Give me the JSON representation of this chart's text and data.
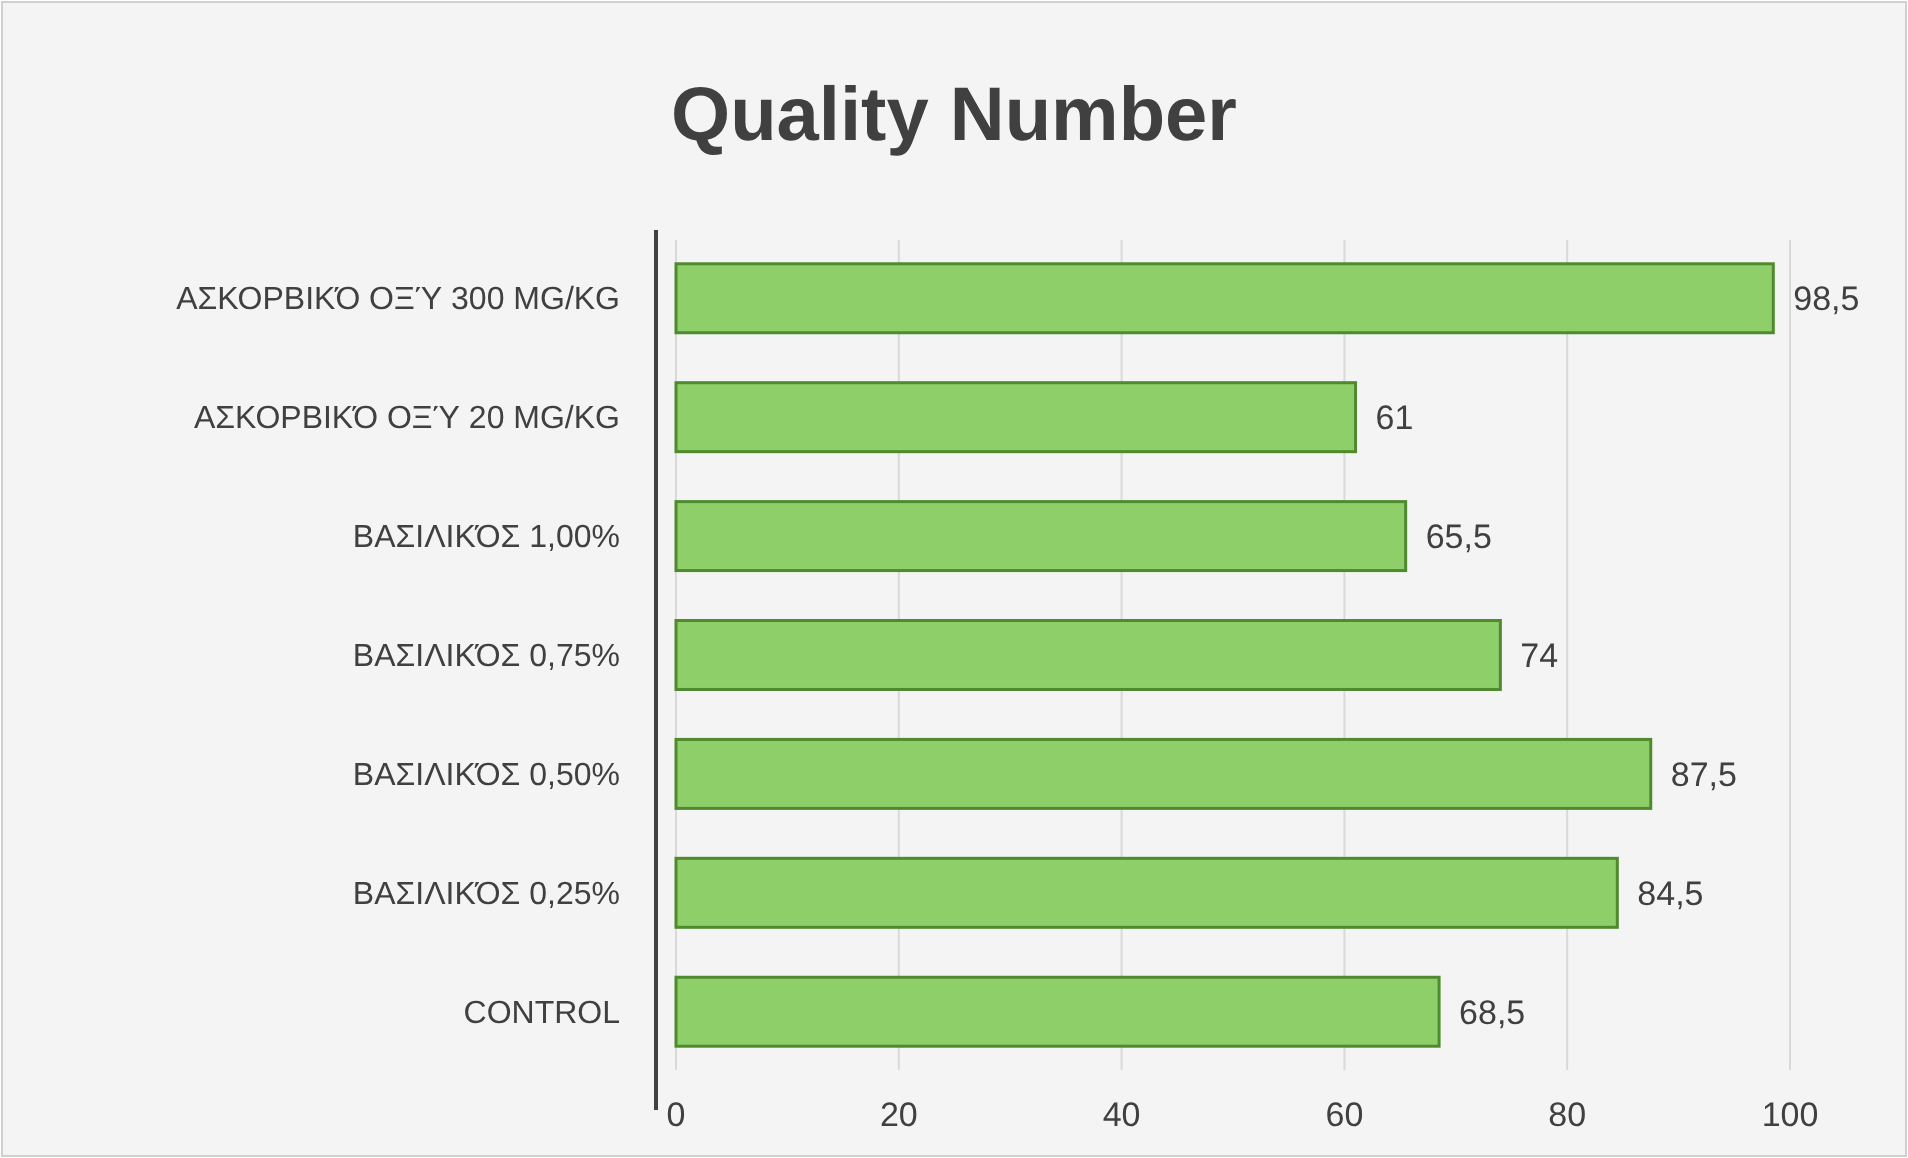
{
  "chart_data": {
    "type": "bar",
    "orientation": "horizontal",
    "title": "Quality Number",
    "categories": [
      "ΑΣΚΟΡΒΙΚΌ ΟΞΎ 300 MG/KG",
      "ΑΣΚΟΡΒΙΚΌ ΟΞΎ 20 MG/KG",
      "ΒΑΣΙΛΙΚΌΣ 1,00%",
      "ΒΑΣΙΛΙΚΌΣ 0,75%",
      "ΒΑΣΙΛΙΚΌΣ 0,50%",
      "ΒΑΣΙΛΙΚΌΣ 0,25%",
      "CONTROL"
    ],
    "values": [
      98.5,
      61,
      65.5,
      74,
      87.5,
      84.5,
      68.5
    ],
    "value_labels": [
      "98,5",
      "61",
      "65,5",
      "74",
      "87,5",
      "84,5",
      "68,5"
    ],
    "color": "#8fcf6a",
    "xlim": [
      0,
      100
    ],
    "xticks": [
      0,
      20,
      40,
      60,
      80,
      100
    ],
    "grid": "x"
  }
}
